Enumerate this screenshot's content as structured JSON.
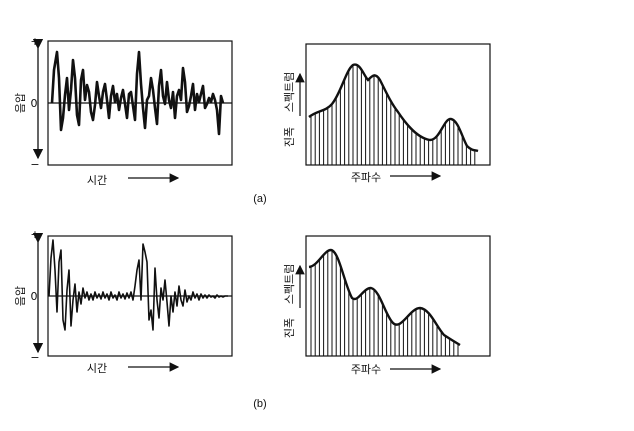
{
  "panel_a": {
    "caption": "(a)",
    "waveform": {
      "y_label": "음압",
      "x_label": "시간",
      "plus": "+",
      "zero": "0",
      "minus": "−"
    },
    "spectrum": {
      "y_label_top": "스펙트럼",
      "y_label_bottom": "진폭",
      "x_label": "주파수"
    }
  },
  "panel_b": {
    "caption": "(b)",
    "waveform": {
      "y_label": "음압",
      "x_label": "시간",
      "plus": "+",
      "zero": "0",
      "minus": "−"
    },
    "spectrum": {
      "y_label_top": "스펙트럼",
      "y_label_bottom": "진폭",
      "x_label": "주파수"
    }
  }
}
